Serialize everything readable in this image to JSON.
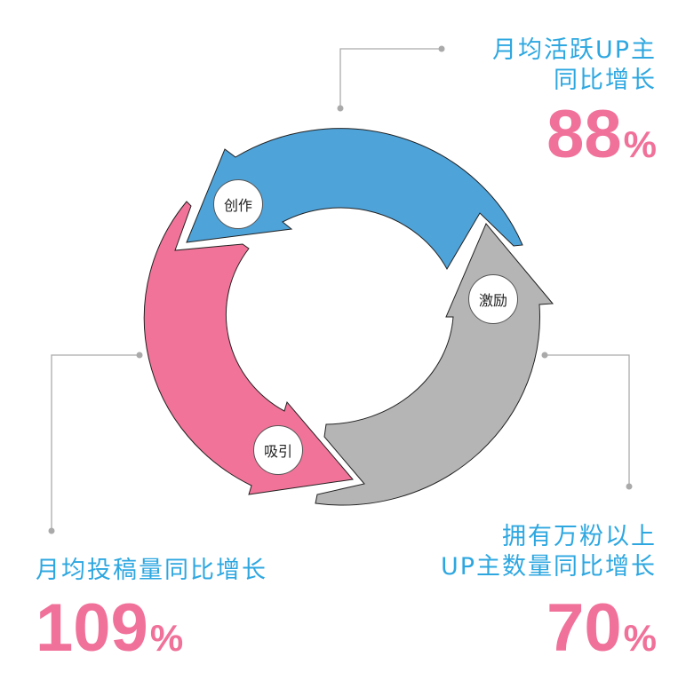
{
  "cycle": {
    "nodes": [
      {
        "label": "创作",
        "color": "#4ea3d9"
      },
      {
        "label": "激励",
        "color": "#b5b5b5"
      },
      {
        "label": "吸引",
        "color": "#f27399"
      }
    ]
  },
  "stats": [
    {
      "label_lines": [
        "月均活跃UP主",
        "同比增长"
      ],
      "value": "88",
      "unit": "%"
    },
    {
      "label_lines": [
        "月均投稿量同比增长"
      ],
      "value": "109",
      "unit": "%"
    },
    {
      "label_lines": [
        "拥有万粉以上",
        "UP主数量同比增长"
      ],
      "value": "70",
      "unit": "%"
    }
  ],
  "colors": {
    "label_text": "#2ea7e0",
    "value_text": "#f0719a",
    "connector": "#aaaaaa"
  }
}
